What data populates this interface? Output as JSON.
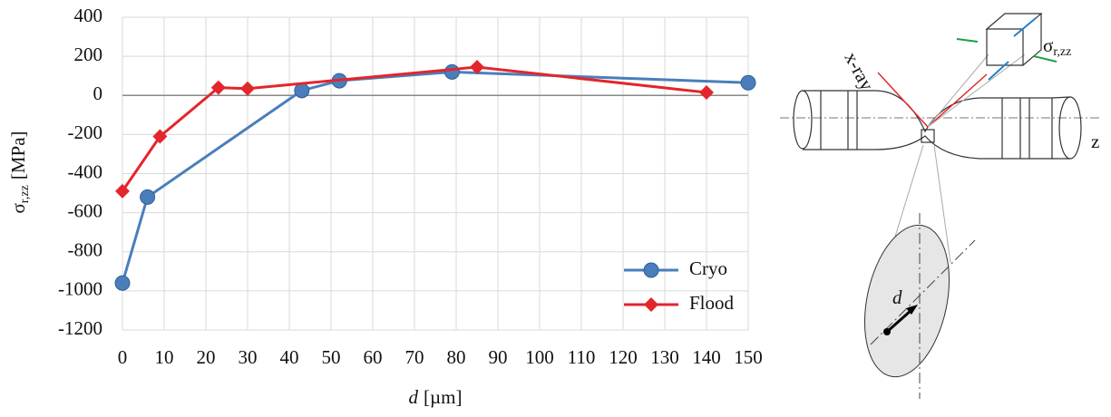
{
  "chart_data": {
    "type": "line",
    "xlabel": {
      "symbol": "d",
      "unit": "[µm]"
    },
    "ylabel": {
      "symbol": "σ",
      "subscript": "r,zz",
      "unit": "[MPa]"
    },
    "xlim": [
      0,
      150
    ],
    "xticks": [
      0,
      10,
      20,
      30,
      40,
      50,
      60,
      70,
      80,
      90,
      100,
      110,
      120,
      130,
      140,
      150
    ],
    "ylim": [
      -1200,
      400
    ],
    "yticks": [
      -1200,
      -1000,
      -800,
      -600,
      -400,
      -200,
      0,
      200,
      400
    ],
    "grid": true,
    "legend": "lower right",
    "series": [
      {
        "name": "Cryo",
        "color": "#4a7ebb",
        "marker": "circle",
        "x": [
          0,
          6,
          43,
          52,
          79,
          150
        ],
        "values": [
          -960,
          -520,
          25,
          75,
          120,
          65
        ]
      },
      {
        "name": "Flood",
        "color": "#e3262b",
        "marker": "diamond",
        "x": [
          0,
          9,
          23,
          30,
          85,
          140
        ],
        "values": [
          -490,
          -210,
          40,
          35,
          145,
          15
        ]
      }
    ]
  },
  "diagram": {
    "xray_label": "x-ray",
    "stress_symbol": "σ",
    "stress_subscript": "r,zz",
    "axis_label": "z",
    "depth_label": "d"
  }
}
